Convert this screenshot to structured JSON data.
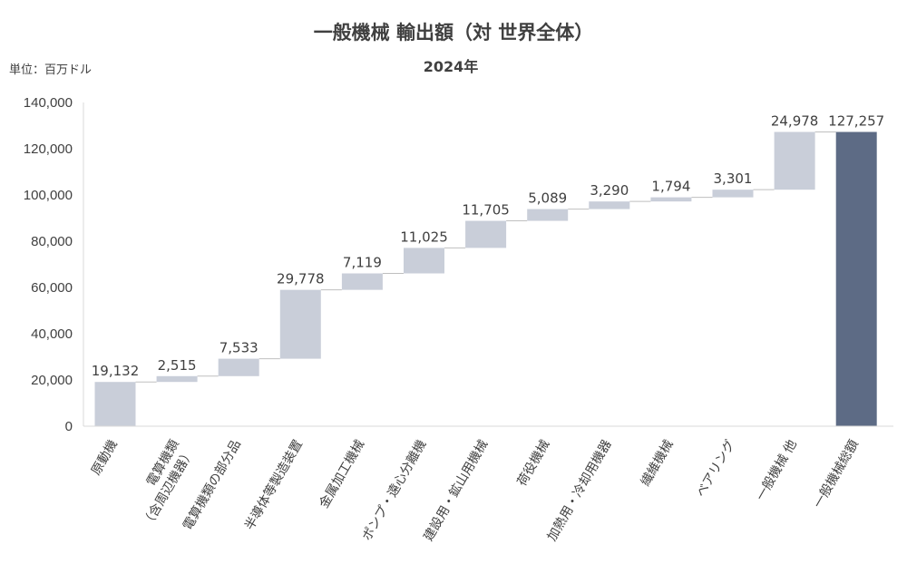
{
  "chart_data": {
    "type": "bar",
    "subtype": "waterfall",
    "title": "一般機械 輸出額（対 世界全体）",
    "subtitle": "2024年",
    "unit_label": "単位：百万ドル",
    "ylim": [
      0,
      140000
    ],
    "yticks": [
      0,
      20000,
      40000,
      60000,
      80000,
      100000,
      120000,
      140000
    ],
    "ytick_labels": [
      "0",
      "20,000",
      "40,000",
      "60,000",
      "80,000",
      "100,000",
      "120,000",
      "140,000"
    ],
    "grid": false,
    "legend": "none",
    "categories": [
      [
        "原動機"
      ],
      [
        "電算機類",
        "（含周辺機器）"
      ],
      [
        "電算機類の部分品"
      ],
      [
        "半導体等製造装置"
      ],
      [
        "金属加工機械"
      ],
      [
        "ポンプ・遠心分離機"
      ],
      [
        "建設用・鉱山用機械"
      ],
      [
        "荷役機械"
      ],
      [
        "加熱用・冷却用機器"
      ],
      [
        "繊維機械"
      ],
      [
        "ベアリング"
      ],
      [
        "一般機械 他"
      ],
      [
        "一般機械総額"
      ]
    ],
    "values": [
      19132,
      2515,
      7533,
      29778,
      7119,
      11025,
      11705,
      5089,
      3290,
      1794,
      3301,
      24978,
      127257
    ],
    "value_labels": [
      "19,132",
      "2,515",
      "7,533",
      "29,778",
      "7,119",
      "11,025",
      "11,705",
      "5,089",
      "3,290",
      "1,794",
      "3,301",
      "24,978",
      "127,257"
    ],
    "total_index": 12,
    "colors": {
      "increment": "#c9ced9",
      "total": "#5d6b85",
      "axis": "#d9d9d9",
      "connector": "#bfbfbf"
    }
  }
}
